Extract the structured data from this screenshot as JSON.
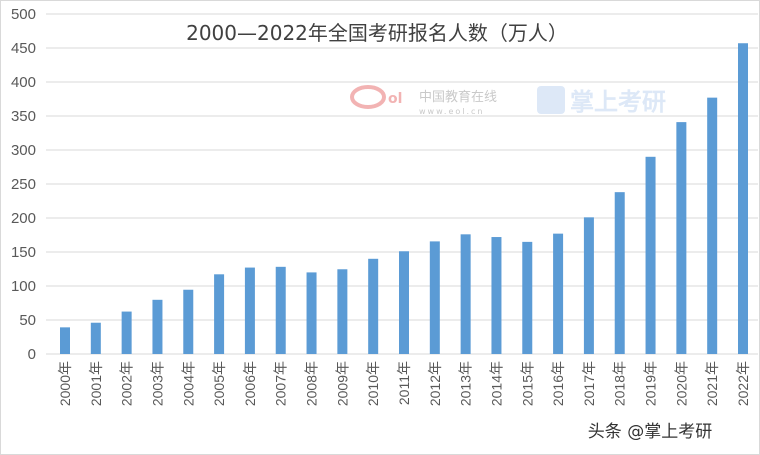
{
  "chart_data": {
    "type": "bar",
    "title": "2000—2022年全国考研报名人数（万人）",
    "xlabel": "",
    "ylabel": "",
    "ylim": [
      0,
      500
    ],
    "yticks": [
      "0",
      "50",
      "100",
      "150",
      "200",
      "250",
      "300",
      "350",
      "400",
      "450",
      "500"
    ],
    "grid": true,
    "bar_color": "#5b9bd5",
    "categories": [
      "2000年",
      "2001年",
      "2002年",
      "2003年",
      "2004年",
      "2005年",
      "2006年",
      "2007年",
      "2008年",
      "2009年",
      "2010年",
      "2011年",
      "2012年",
      "2013年",
      "2014年",
      "2015年",
      "2016年",
      "2017年",
      "2018年",
      "2019年",
      "2020年",
      "2021年",
      "2022年"
    ],
    "values": [
      39.2,
      46,
      62.4,
      79.7,
      94.5,
      117.2,
      127.1,
      128.2,
      120,
      124.6,
      140,
      151.1,
      165.6,
      176,
      172,
      164.9,
      177,
      201,
      238,
      290,
      341,
      377,
      457
    ]
  },
  "watermarks": {
    "eol_name": "中国教育在线",
    "eol_url": "www.eol.cn",
    "brand": "掌上考研",
    "footer": "头条 @掌上考研"
  }
}
